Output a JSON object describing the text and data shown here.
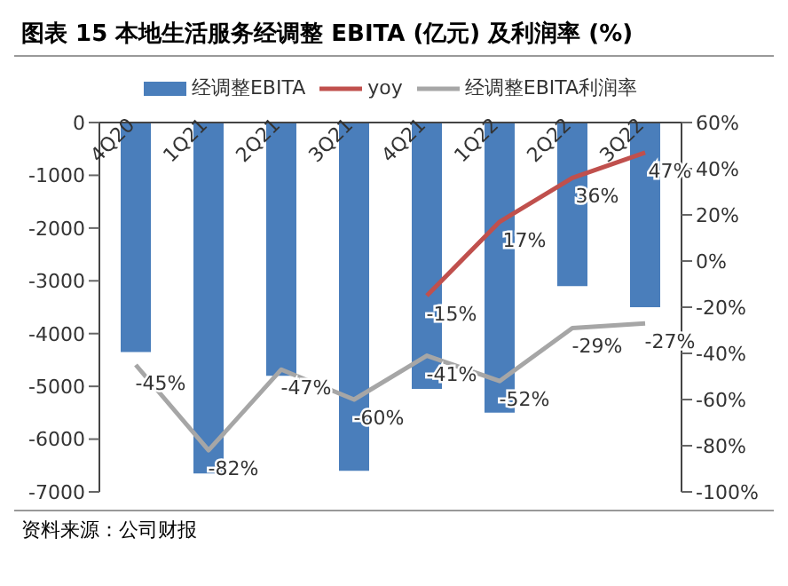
{
  "chart_data": {
    "type": "bar",
    "title": "图表 15 本地生活服务经调整 EBITA (亿元) 及利润率 (%)",
    "annotations": [
      "资料来源：公司财报"
    ],
    "categories": [
      "4Q20",
      "1Q21",
      "2Q21",
      "3Q21",
      "4Q21",
      "1Q22",
      "2Q22",
      "3Q22"
    ],
    "series": [
      {
        "name": "经调整EBITA",
        "color": "#4a7ebb",
        "values": [
          -4350,
          -6650,
          -4800,
          -6600,
          -5050,
          -5500,
          -3100,
          -3500
        ]
      },
      {
        "name": "yoy",
        "type": "line",
        "axis": "y2",
        "color": "#c0504d",
        "values": [
          null,
          null,
          null,
          null,
          -15,
          17,
          36,
          47
        ],
        "value_labels": [
          null,
          null,
          null,
          null,
          "-15%",
          "17%",
          "36%",
          "47%"
        ]
      },
      {
        "name": "经调整EBITA利润率",
        "type": "line",
        "axis": "y2",
        "color": "#a6a6a6",
        "values": [
          -45,
          -82,
          -47,
          -60,
          -41,
          -52,
          -29,
          -27
        ],
        "value_labels": [
          "-45%",
          "-82%",
          "-47%",
          "-60%",
          "-41%",
          "-52%",
          "-29%",
          "-27%"
        ]
      }
    ],
    "ylim": [
      -7000,
      0
    ],
    "yticks": [
      -7000,
      -6000,
      -5000,
      -4000,
      -3000,
      -2000,
      -1000,
      0
    ],
    "y2lim": [
      -100,
      60
    ],
    "y2ticks": [
      {
        "value": -100,
        "label": "-100%"
      },
      {
        "value": -80,
        "label": "-80%"
      },
      {
        "value": -60,
        "label": "-60%"
      },
      {
        "value": -40,
        "label": "-40%"
      },
      {
        "value": -20,
        "label": "-20%"
      },
      {
        "value": 0,
        "label": "0%"
      },
      {
        "value": 20,
        "label": "20%"
      },
      {
        "value": 40,
        "label": "40%"
      },
      {
        "value": 60,
        "label": "60%"
      }
    ],
    "legend": "top",
    "grid": false,
    "marker": "none",
    "line_style": "solid"
  }
}
